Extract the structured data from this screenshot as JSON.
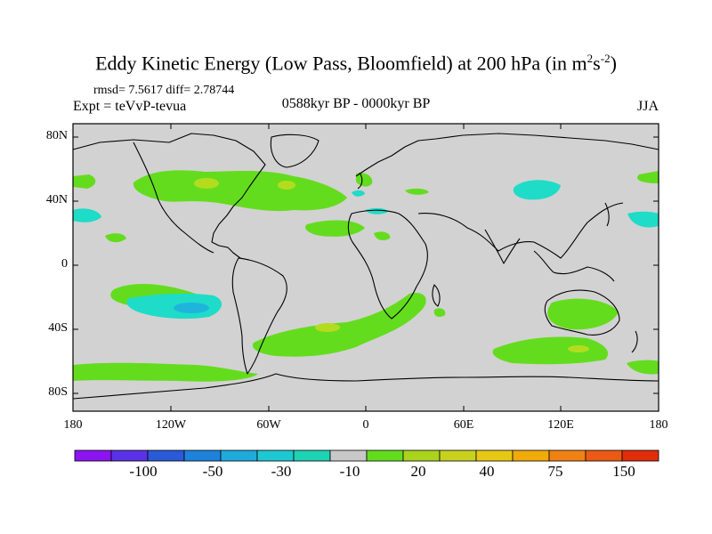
{
  "title": {
    "main": "Eddy Kinetic Energy (Low Pass, Bloomfield) at 200 hPa (in m",
    "sup1": "2",
    "mid": "s",
    "sup2": "-2",
    "end": ")"
  },
  "stats": "rmsd= 7.5617 diff= 2.78744",
  "experiment": "Expt = teVvP-tevua",
  "period": "0588kyr BP - 0000kyr BP",
  "season": "JJA",
  "y_axis_labels": [
    "80N",
    "40N",
    "0",
    "40S",
    "80S"
  ],
  "x_axis_labels": [
    "180",
    "120W",
    "60W",
    "0",
    "60E",
    "120E",
    "180"
  ],
  "colorbar": {
    "colors": [
      "#8b14f0",
      "#5a32e6",
      "#2a5ad8",
      "#1e82dc",
      "#1eaadc",
      "#1ec8d2",
      "#1ed2b4",
      "#c8c8c8",
      "#64dc1e",
      "#aad21e",
      "#c8d21e",
      "#e6c814",
      "#f0aa0a",
      "#f08214",
      "#eb5a14",
      "#e12d0a"
    ],
    "labels": [
      "-100",
      "-50",
      "-30",
      "-10",
      "20",
      "40",
      "75",
      "150"
    ]
  },
  "colors": {
    "background_field": "#d2d2d2",
    "positive_low": "#64dc1e",
    "positive_mid": "#b4dc1e",
    "negative_low": "#1edcc8",
    "negative_mid": "#1eb4dc"
  }
}
